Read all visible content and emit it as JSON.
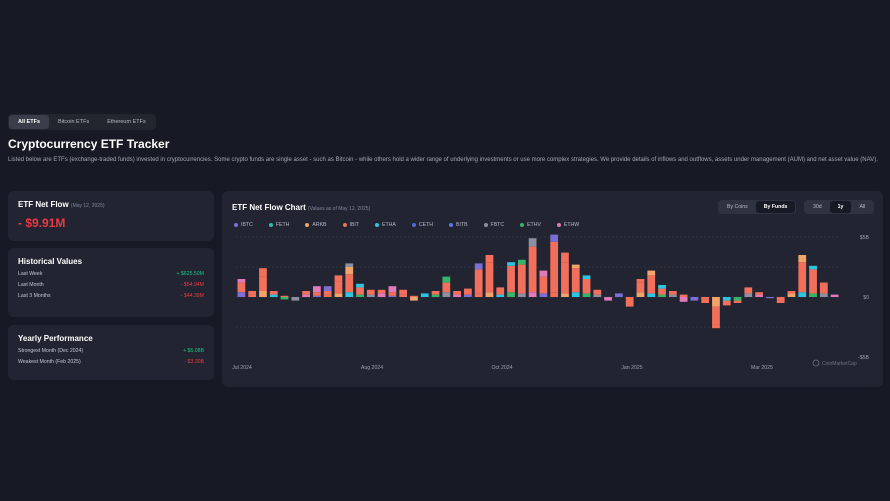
{
  "tabs": [
    {
      "label": "All ETFs",
      "active": true
    },
    {
      "label": "Bitcoin ETFs",
      "active": false
    },
    {
      "label": "Ethereum ETFs",
      "active": false
    }
  ],
  "page": {
    "title": "Cryptocurrency ETF Tracker",
    "description": "Listed below are ETFs (exchange-traded funds) invested in cryptocurrencies. Some crypto funds are single asset - such as Bitcoin - while others hold a wider range of underlying investments or use more complex strategies. We provide details of inflows and outflows, assets under management (AUM) and net asset value (NAV)."
  },
  "net_flow": {
    "title": "ETF Net Flow",
    "date": "(May 12, 2025)",
    "value": "- $9.91M"
  },
  "historical": {
    "title": "Historical Values",
    "rows": [
      {
        "label": "Last Week",
        "value": "+ $625.50M",
        "dir": "pos"
      },
      {
        "label": "Last Month",
        "value": "- $54.94M",
        "dir": "neg"
      },
      {
        "label": "Last 3 Months",
        "value": "- $44.39M",
        "dir": "neg"
      }
    ]
  },
  "yearly": {
    "title": "Yearly Performance",
    "rows": [
      {
        "label": "Strongest Month (Dec 2024)",
        "value": "+ $5.08B",
        "dir": "pos"
      },
      {
        "label": "Weakest Month (Feb 2025)",
        "value": "- $3.30B",
        "dir": "neg"
      }
    ]
  },
  "chart_header": {
    "title": "ETF Net Flow Chart",
    "subtitle": "(Values as of May 12, 2025)"
  },
  "view_toggle": [
    {
      "label": "By Coins",
      "active": false
    },
    {
      "label": "By Funds",
      "active": true
    }
  ],
  "range_toggle": [
    {
      "label": "30d",
      "active": false
    },
    {
      "label": "1y",
      "active": true
    },
    {
      "label": "All",
      "active": false
    }
  ],
  "watermark": "CoinMarketCap",
  "colors": {
    "IBTC": "#7b6fd6",
    "FETH": "#2bbcaa",
    "ARKB": "#f0a46a",
    "IBIT": "#f26f5b",
    "ETHA": "#2cc5e0",
    "CETH": "#4f6ad8",
    "BITB": "#5b77e6",
    "FBTC": "#8b8fa0",
    "ETHV": "#35b56a",
    "ETHW": "#e07ab8"
  },
  "chart_data": {
    "type": "bar",
    "stacked": true,
    "y_ticks": [
      "$5B",
      "$0",
      "-$5B"
    ],
    "ylim": [
      -5,
      5
    ],
    "x_ticks": [
      "Jul 2024",
      "Aug 2024",
      "Oct 2024",
      "Jan 2025",
      "Mar 2025"
    ],
    "legend": [
      "IBTC",
      "FETH",
      "ARKB",
      "IBIT",
      "ETHA",
      "CETH",
      "BITB",
      "FBTC",
      "ETHV",
      "ETHW"
    ],
    "weeks": [
      [
        0.4,
        0.8,
        0.3
      ],
      [
        0.2,
        0.3
      ],
      [
        0.5,
        1.2,
        0.7
      ],
      [
        0.2,
        0.3
      ],
      [
        -0.2,
        0.1
      ],
      [
        -0.3
      ],
      [
        0.2,
        0.3
      ],
      [
        0.1,
        0.3,
        0.5
      ],
      [
        0.2,
        0.3,
        0.4
      ],
      [
        0.3,
        1.0,
        0.5
      ],
      [
        0.4,
        1.5,
        0.6,
        0.3
      ],
      [
        0.2,
        0.6,
        0.3
      ],
      [
        0.2,
        0.4
      ],
      [
        0.3,
        0.3
      ],
      [
        0.1,
        0.3,
        0.5
      ],
      [
        0.2,
        0.4
      ],
      [
        -0.3,
        0.1
      ],
      [
        0.3
      ],
      [
        0.2,
        0.3
      ],
      [
        0.4,
        0.8,
        0.5
      ],
      [
        0.2,
        0.3
      ],
      [
        0.2,
        0.5
      ],
      [
        0.3,
        2.0,
        0.5
      ],
      [
        0.4,
        2.5,
        0.6
      ],
      [
        0.2,
        0.6
      ],
      [
        0.4,
        2.2,
        0.3
      ],
      [
        0.3,
        2.4,
        0.4
      ],
      [
        0.4,
        3.8,
        0.7
      ],
      [
        0.3,
        1.4,
        0.5
      ],
      [
        0.4,
        4.2,
        0.6
      ],
      [
        0.3,
        2.6,
        0.8
      ],
      [
        0.4,
        2.0,
        0.3
      ],
      [
        0.3,
        1.2,
        0.3
      ],
      [
        0.2,
        0.4
      ],
      [
        -0.3
      ],
      [
        0.3
      ],
      [
        -0.5,
        -0.3
      ],
      [
        0.4,
        0.8,
        0.3
      ],
      [
        0.3,
        1.5,
        0.4
      ],
      [
        0.2,
        0.5,
        0.3
      ],
      [
        0.2,
        0.3
      ],
      [
        -0.4,
        0.2
      ],
      [
        -0.3
      ],
      [
        -0.2,
        -0.3
      ],
      [
        -0.8,
        -1.5,
        -0.3
      ],
      [
        -0.3,
        -0.4
      ],
      [
        -0.3,
        -0.2
      ],
      [
        0.3,
        0.5
      ],
      [
        0.2,
        0.2
      ],
      [
        -0.1
      ],
      [
        -0.3,
        -0.2
      ],
      [
        0.3,
        0.2
      ],
      [
        0.4,
        2.5,
        0.6
      ],
      [
        0.3,
        2.0,
        0.3
      ],
      [
        0.3,
        0.9
      ],
      [
        0.2
      ]
    ]
  }
}
